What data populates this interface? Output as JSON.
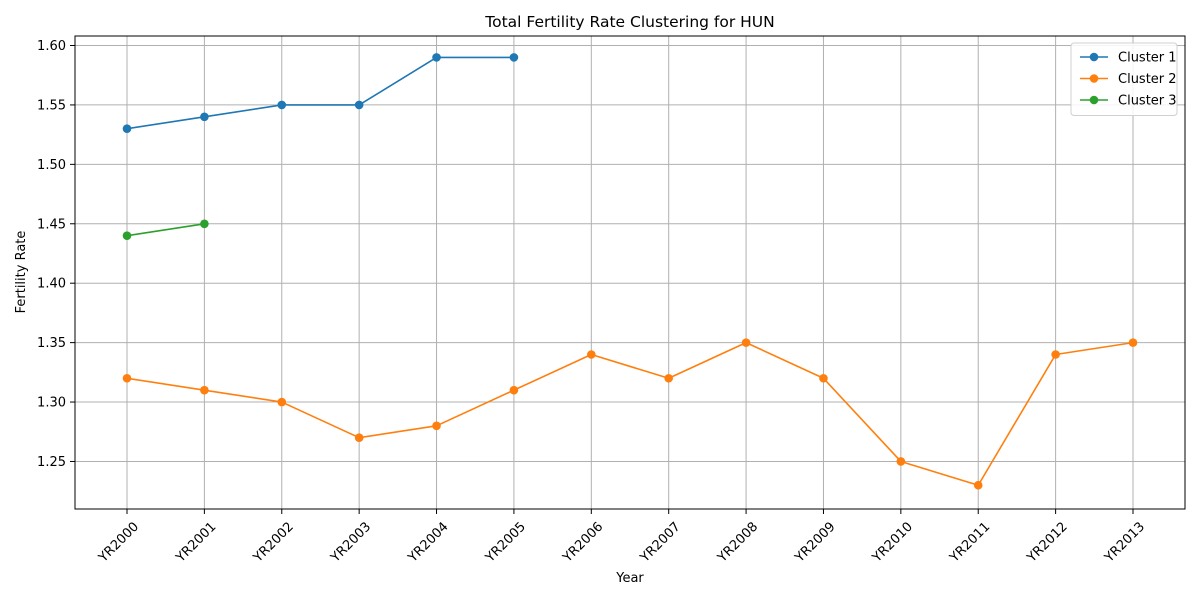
{
  "chart_data": {
    "type": "line",
    "title": "Total Fertility Rate Clustering for HUN",
    "xlabel": "Year",
    "ylabel": "Fertility Rate",
    "categories": [
      "YR2000",
      "YR2001",
      "YR2002",
      "YR2003",
      "YR2004",
      "YR2005",
      "YR2006",
      "YR2007",
      "YR2008",
      "YR2009",
      "YR2010",
      "YR2011",
      "YR2012",
      "YR2013"
    ],
    "ylim": [
      1.21,
      1.608
    ],
    "yticks": [
      "1.25",
      "1.30",
      "1.35",
      "1.40",
      "1.45",
      "1.50",
      "1.55",
      "1.60"
    ],
    "grid": true,
    "legend_position": "top-right",
    "series": [
      {
        "name": "Cluster 1",
        "color": "#1f77b4",
        "points": [
          [
            "YR2000",
            1.53
          ],
          [
            "YR2001",
            1.54
          ],
          [
            "YR2002",
            1.55
          ],
          [
            "YR2003",
            1.55
          ],
          [
            "YR2004",
            1.59
          ],
          [
            "YR2005",
            1.59
          ]
        ]
      },
      {
        "name": "Cluster 2",
        "color": "#ff7f0e",
        "points": [
          [
            "YR2000",
            1.32
          ],
          [
            "YR2001",
            1.31
          ],
          [
            "YR2002",
            1.3
          ],
          [
            "YR2003",
            1.27
          ],
          [
            "YR2004",
            1.28
          ],
          [
            "YR2005",
            1.31
          ],
          [
            "YR2006",
            1.34
          ],
          [
            "YR2007",
            1.32
          ],
          [
            "YR2008",
            1.35
          ],
          [
            "YR2009",
            1.32
          ],
          [
            "YR2010",
            1.25
          ],
          [
            "YR2011",
            1.23
          ],
          [
            "YR2012",
            1.34
          ],
          [
            "YR2013",
            1.35
          ]
        ]
      },
      {
        "name": "Cluster 3",
        "color": "#2ca02c",
        "points": [
          [
            "YR2000",
            1.44
          ],
          [
            "YR2001",
            1.45
          ]
        ]
      }
    ]
  }
}
